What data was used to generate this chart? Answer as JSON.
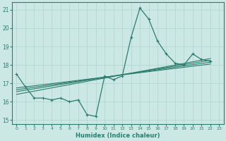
{
  "xlabel": "Humidex (Indice chaleur)",
  "ylabel": "",
  "bg_color": "#cce8e4",
  "line_color": "#2d7d6e",
  "grid_color": "#b0d4cf",
  "xlim": [
    -0.5,
    23.5
  ],
  "ylim": [
    14.8,
    21.4
  ],
  "yticks": [
    15,
    16,
    17,
    18,
    19,
    20,
    21
  ],
  "xticks": [
    0,
    1,
    2,
    3,
    4,
    5,
    6,
    7,
    8,
    9,
    10,
    11,
    12,
    13,
    14,
    15,
    16,
    17,
    18,
    19,
    20,
    21,
    22,
    23
  ],
  "main_x": [
    0,
    1,
    2,
    3,
    4,
    5,
    6,
    7,
    8,
    9,
    10,
    11,
    12,
    13,
    14,
    15,
    16,
    17,
    18,
    19,
    20,
    21,
    22
  ],
  "main_y": [
    17.5,
    16.8,
    16.2,
    16.2,
    16.1,
    16.2,
    16.0,
    16.1,
    15.3,
    15.2,
    17.4,
    17.2,
    17.4,
    19.5,
    21.1,
    20.5,
    19.3,
    18.6,
    18.1,
    18.0,
    18.6,
    18.3,
    18.2
  ],
  "linear_lines": [
    {
      "x0": 0,
      "y0": 16.75,
      "x1": 22,
      "y1": 18.05
    },
    {
      "x0": 0,
      "y0": 16.65,
      "x1": 22,
      "y1": 18.15
    },
    {
      "x0": 0,
      "y0": 16.55,
      "x1": 22,
      "y1": 18.25
    },
    {
      "x0": 0,
      "y0": 16.4,
      "x1": 22,
      "y1": 18.35
    }
  ]
}
